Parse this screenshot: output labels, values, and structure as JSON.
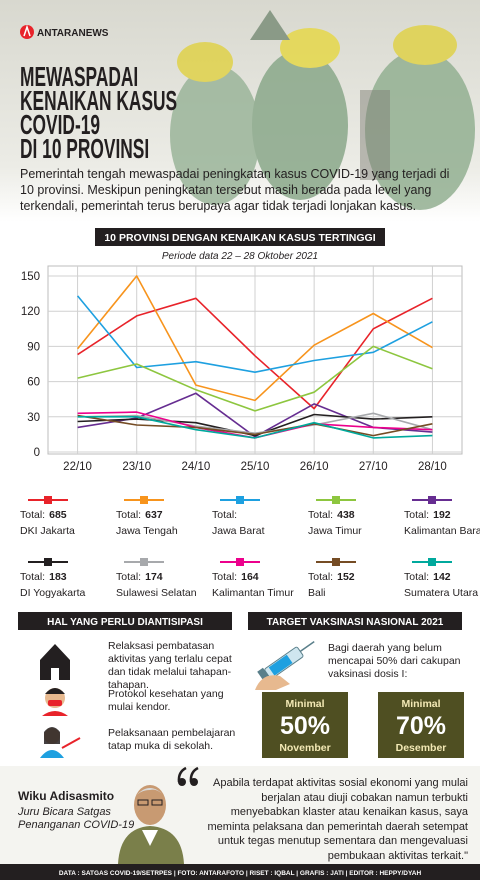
{
  "header": {
    "logo": "ANTARANEWS",
    "title_lines": [
      "MEWASPADAI",
      "KENAIKAN KASUS",
      "COVID-19",
      "DI 10 PROVINSI"
    ]
  },
  "intro": "Pemerintah tengah mewaspadai peningkatan kasus COVID-19 yang terjadi di 10 provinsi. Meskipun peningkatan tersebut masih berada pada level yang terkendali, pemerintah terus berupaya agar tidak terjadi lonjakan kasus.",
  "chart_data": {
    "type": "line",
    "title": "10 PROVINSI DENGAN KENAIKAN KASUS TERTINGGI",
    "subtitle": "Periode data 22 – 28 Oktober 2021",
    "categories": [
      "22/10",
      "23/10",
      "24/10",
      "25/10",
      "26/10",
      "27/10",
      "28/10"
    ],
    "ylim": [
      0,
      150
    ],
    "yticks": [
      0,
      30,
      60,
      90,
      120,
      150
    ],
    "grid": true,
    "total_label": "Total:",
    "series": [
      {
        "name": "DKI Jakarta",
        "color": "#e8232a",
        "values": [
          83,
          116,
          131,
          82,
          37,
          105,
          131
        ],
        "total": 685
      },
      {
        "name": "Jawa Tengah",
        "color": "#f7941d",
        "values": [
          88,
          150,
          57,
          44,
          91,
          118,
          89
        ],
        "total": 637
      },
      {
        "name": "Jawa Barat",
        "color": "#1ea0e0",
        "values": [
          133,
          72,
          77,
          68,
          78,
          85,
          111
        ],
        "total": null
      },
      {
        "name": "Jawa Timur",
        "color": "#8dc63f",
        "values": [
          63,
          75,
          53,
          35,
          51,
          90,
          71
        ],
        "total": 438
      },
      {
        "name": "Kalimantan Barat",
        "color": "#662d91",
        "values": [
          21,
          29,
          50,
          13,
          41,
          21,
          17
        ],
        "total": 192
      },
      {
        "name": "DI Yogyakarta",
        "color": "#231f20",
        "values": [
          26,
          28,
          25,
          14,
          32,
          28,
          30
        ],
        "total": 183
      },
      {
        "name": "Sulawesi Selatan",
        "color": "#a7a9ac",
        "values": [
          30,
          31,
          22,
          16,
          23,
          33,
          19
        ],
        "total": 174
      },
      {
        "name": "Kalimantan Timur",
        "color": "#ec008c",
        "values": [
          33,
          34,
          21,
          12,
          24,
          21,
          19
        ],
        "total": 164
      },
      {
        "name": "Bali",
        "color": "#754c24",
        "values": [
          31,
          23,
          21,
          15,
          24,
          14,
          24
        ],
        "total": 152
      },
      {
        "name": "Sumatera Utara",
        "color": "#00a99d",
        "values": [
          30,
          30,
          19,
          12,
          25,
          12,
          14
        ],
        "total": 142
      }
    ]
  },
  "anticipation": {
    "title": "HAL YANG PERLU DIANTISIPASI",
    "items": [
      "Relaksasi pembatasan aktivitas yang terlalu cepat dan tidak melalui tahapan-tahapan.",
      "Protokol kesehatan yang mulai kendor.",
      "Pelaksanaan pembelajaran tatap muka di sekolah."
    ]
  },
  "vaccination": {
    "title": "TARGET VAKSINASI NASIONAL 2021",
    "text": "Bagi daerah yang belum mencapai 50% dari cakupan vaksinasi dosis I:",
    "targets": [
      {
        "label": "Minimal",
        "value": "50%",
        "month": "November"
      },
      {
        "label": "Minimal",
        "value": "70%",
        "month": "Desember"
      }
    ]
  },
  "quote": {
    "name": "Wiku Adisasmito",
    "role": "Juru Bicara Satgas Penanganan COVID-19",
    "text": "Apabila terdapat aktivitas sosial ekonomi yang mulai berjalan atau diuji cobakan namun terbukti menyebabkan klaster atau kenaikan kasus, saya meminta pelaksana dan pemerintah daerah setempat untuk tegas menutup sementara dan mengevaluasi pembukaan aktivitas terkait.\""
  },
  "footer": "DATA : SATGAS COVID-19/SETRPES | FOTO: ANTARAFOTO | RISET : IQBAL | GRAFIS : JATI | EDITOR : HEPPY/DYAH"
}
